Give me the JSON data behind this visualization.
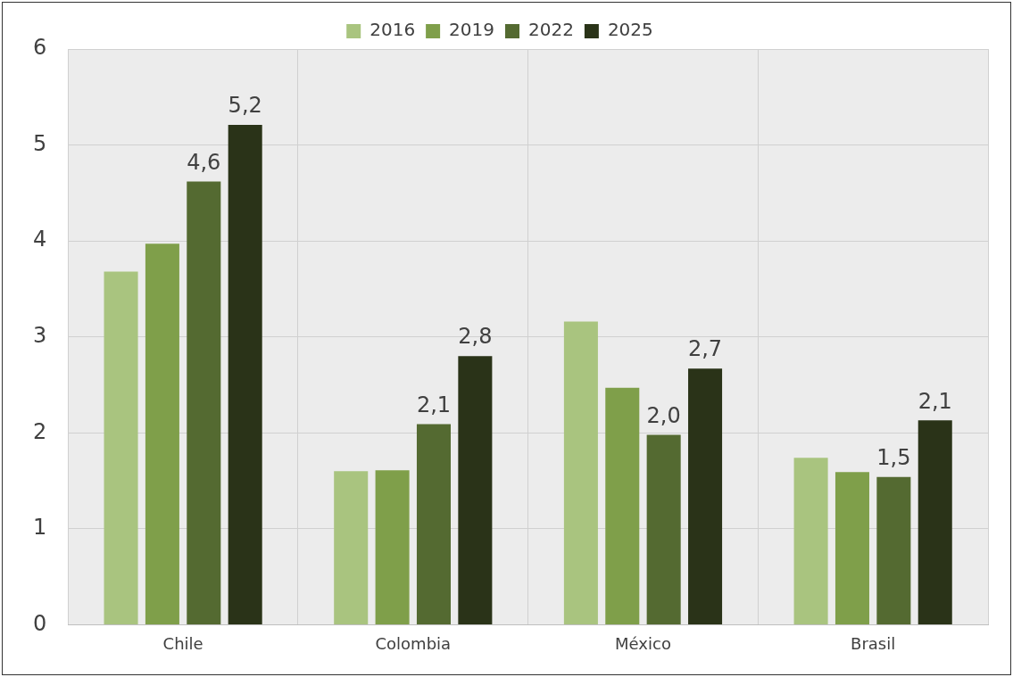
{
  "chart_data": {
    "type": "bar",
    "categories": [
      "Chile",
      "Colombia",
      "México",
      "Brasil"
    ],
    "series": [
      {
        "name": "2016",
        "color": "#a9c47f",
        "values": [
          3.68,
          1.6,
          3.16,
          1.74
        ]
      },
      {
        "name": "2019",
        "color": "#7f9f4a",
        "values": [
          3.97,
          1.61,
          2.47,
          1.59
        ]
      },
      {
        "name": "2022",
        "color": "#546a31",
        "values": [
          4.62,
          2.09,
          1.98,
          1.54
        ],
        "value_labels": [
          "4,6",
          "2,1",
          "2,0",
          "1,5"
        ]
      },
      {
        "name": "2025",
        "color": "#2a3318",
        "values": [
          5.21,
          2.8,
          2.67,
          2.13
        ],
        "value_labels": [
          "5,2",
          "2,8",
          "2,7",
          "2,1"
        ]
      }
    ],
    "ylim": [
      0,
      6
    ],
    "yticks": [
      0,
      1,
      2,
      3,
      4,
      5,
      6
    ],
    "grid": true,
    "legend": "top"
  }
}
